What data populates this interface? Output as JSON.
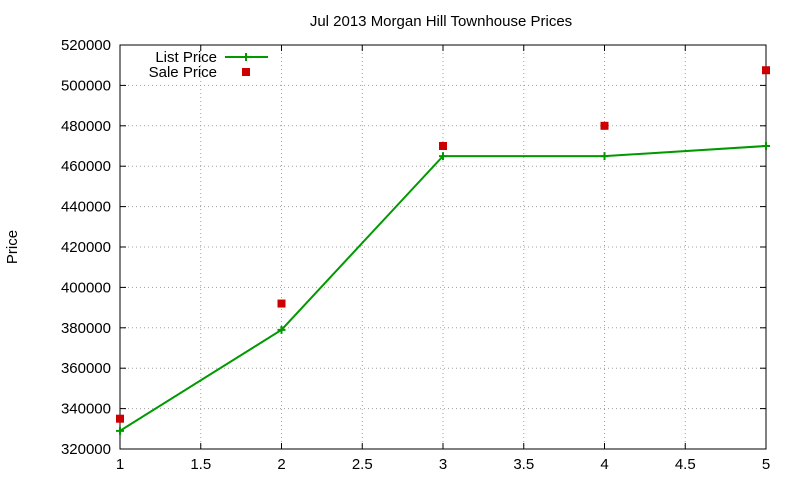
{
  "chart_data": {
    "type": "line",
    "title": "Jul 2013 Morgan Hill Townhouse Prices",
    "xlabel": "",
    "ylabel": "Price",
    "xlim": [
      1,
      5
    ],
    "ylim": [
      320000,
      520000
    ],
    "x_ticks": [
      "1",
      "1.5",
      "2",
      "2.5",
      "3",
      "3.5",
      "4",
      "4.5",
      "5"
    ],
    "y_ticks": [
      "320000",
      "340000",
      "360000",
      "380000",
      "400000",
      "420000",
      "440000",
      "460000",
      "480000",
      "500000",
      "520000"
    ],
    "grid": true,
    "legend_position": "top-left",
    "series": [
      {
        "name": "List Price",
        "style": "line-with-plus-markers",
        "color": "#009900",
        "x": [
          1,
          2,
          3,
          4,
          5
        ],
        "values": [
          329000,
          379000,
          465000,
          465000,
          470000
        ]
      },
      {
        "name": "Sale Price",
        "style": "square-markers",
        "color": "#cc0000",
        "x": [
          1,
          2,
          3,
          4,
          5
        ],
        "values": [
          335000,
          392000,
          470000,
          480000,
          507500
        ]
      }
    ]
  }
}
